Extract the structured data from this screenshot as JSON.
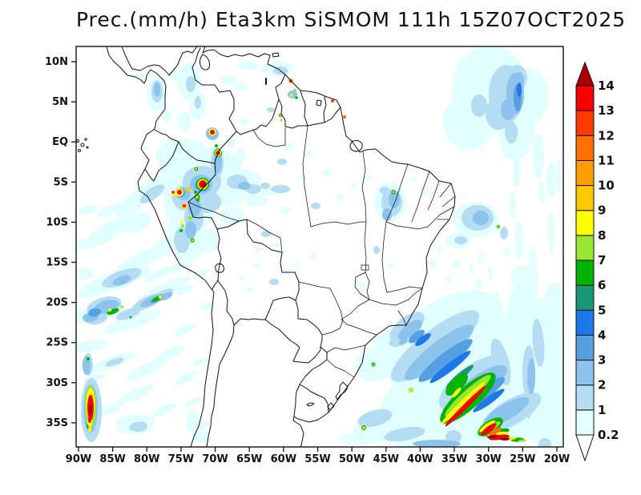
{
  "chart_data": {
    "type": "heatmap",
    "title": "Prec.(mm/h) Eta3km SiSMOM 111h 15Z07OCT2025",
    "variable": "Precipitation rate",
    "units": "mm/h",
    "model": "Eta3km SiSMOM",
    "forecast_hour": "111h",
    "valid_time": "15Z07OCT2025",
    "projection": "lat-lon map of South America",
    "x_axis": {
      "label": "longitude",
      "ticks": [
        "90W",
        "85W",
        "80W",
        "75W",
        "70W",
        "65W",
        "60W",
        "55W",
        "50W",
        "45W",
        "40W",
        "35W",
        "30W",
        "25W",
        "20W"
      ]
    },
    "y_axis": {
      "label": "latitude",
      "ticks": [
        "10N",
        "5N",
        "EQ",
        "5S",
        "10S",
        "15S",
        "20S",
        "25S",
        "30S",
        "35S"
      ]
    },
    "colorbar": {
      "levels": [
        0.2,
        1,
        2,
        3,
        4,
        5,
        6,
        7,
        8,
        9,
        10,
        11,
        12,
        13,
        14
      ],
      "colors": [
        "#E1FFFF",
        "#B4DCF2",
        "#8CC3EC",
        "#55A0E0",
        "#1E78E8",
        "#189878",
        "#00B400",
        "#96E632",
        "#FFFF00",
        "#FFC800",
        "#FF9E00",
        "#FF7000",
        "#FF3C00",
        "#F80000"
      ],
      "over_color": "#A80000",
      "under_color": "#FFFFFF",
      "position": "right",
      "orientation": "vertical"
    },
    "features": [
      {
        "region": "Peru/Brazil border convective cluster (~75-70W, 3-9S)",
        "max_mm_h": 14,
        "character": "scattered intense cells (8-14 mm/h cores) in broad 0.2-4 mm/h shield"
      },
      {
        "region": "SE Atlantic frontal band (~37-28W, 27-38S)",
        "max_mm_h": 14,
        "character": "narrow NW-SE line of 8-14 mm/h along leading edge of 5-7 mm/h green band inside large 0.2-4 mm/h shield"
      },
      {
        "region": "SE Pacific near 88W, 31-35S",
        "max_mm_h": 14,
        "character": "small intense vertical band"
      },
      {
        "region": "SE Pacific open ocean (~90-78W, 10-35S)",
        "max_mm_h": 8,
        "character": "thin diagonal 0.2-3 mm/h streaks with isolated 6-8 mm/h segments near 86-83W, 21S"
      },
      {
        "region": "Tropical Atlantic off NE Brazil (~31-28W, 6N-2N)",
        "max_mm_h": 4,
        "character": "blue blob 1-4 mm/h"
      },
      {
        "region": "Venezuela/Guyana/Suriname",
        "max_mm_h": 13,
        "character": "isolated small cells"
      },
      {
        "region": "Amazon basin and NE Brazil coast",
        "max_mm_h": 8,
        "character": "scattered light 0.2-2 mm/h specks, one 6-8 mm/h cell near 44W 4S"
      }
    ],
    "grid": false,
    "legend_position": "right"
  }
}
